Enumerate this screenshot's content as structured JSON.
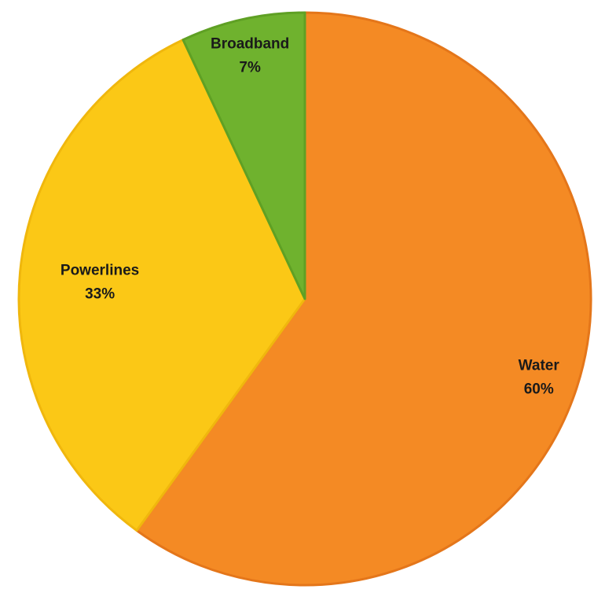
{
  "chart_data": {
    "type": "pie",
    "title": "",
    "start_angle_deg": 0,
    "direction": "clockwise",
    "slices": [
      {
        "name": "Water",
        "value": 60,
        "label": "Water",
        "value_label": "60%",
        "color": "#f48a24",
        "edge": "#e4761a"
      },
      {
        "name": "Powerlines",
        "value": 33,
        "label": "Powerlines",
        "value_label": "33%",
        "color": "#fbc816",
        "edge": "#f0b70d"
      },
      {
        "name": "Broadband",
        "value": 7,
        "label": "Broadband",
        "value_label": "7%",
        "color": "#6fb22e",
        "edge": "#5fa024"
      }
    ],
    "legend": "none",
    "data_labels": "inside"
  }
}
